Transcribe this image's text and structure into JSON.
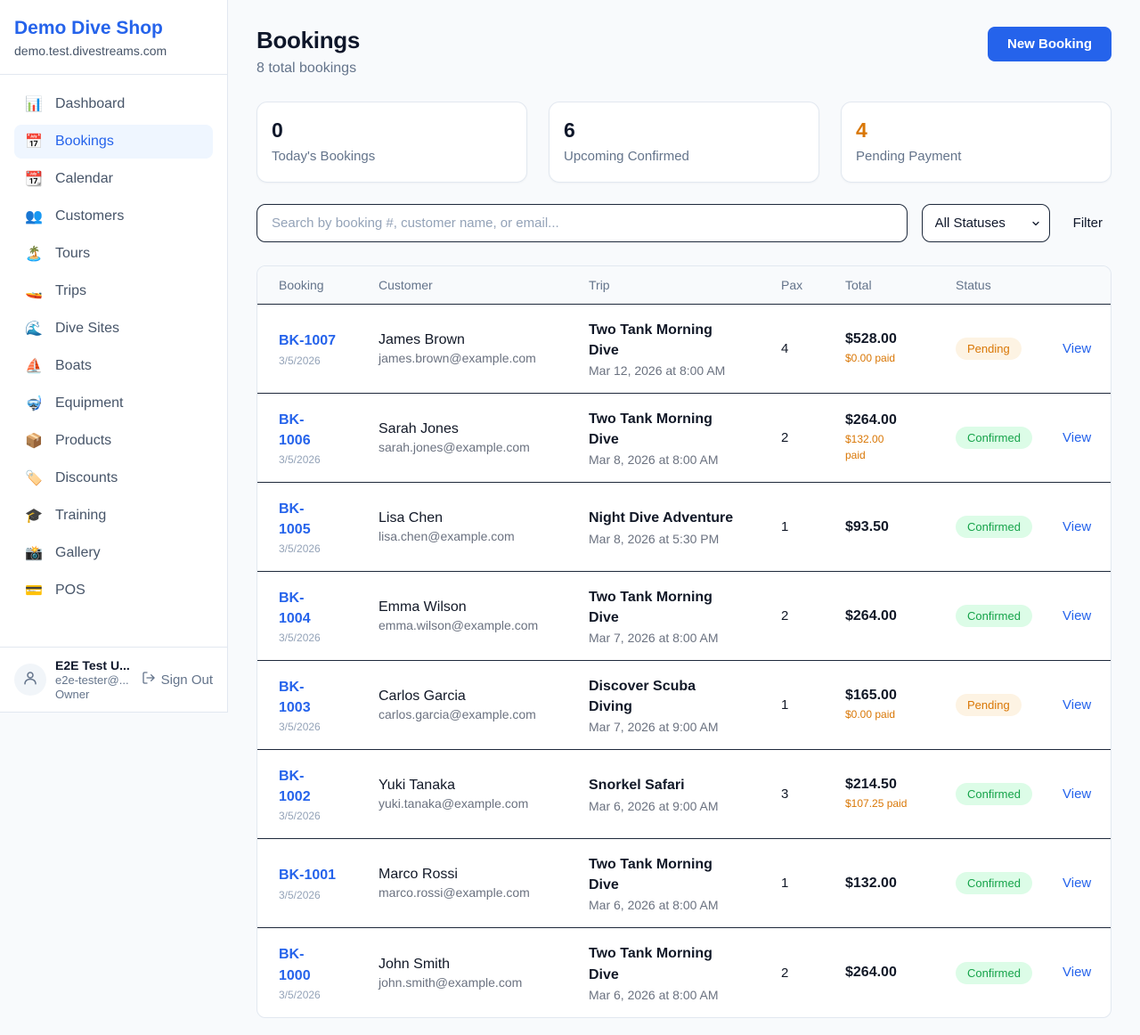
{
  "colors": {
    "accent": "#2563eb",
    "paid": "#d97706",
    "pending_value": "#d97706"
  },
  "sidebar": {
    "shop_name": "Demo Dive Shop",
    "shop_domain": "demo.test.divestreams.com",
    "items": [
      {
        "label": "Dashboard",
        "icon": "📊",
        "icon_name": "dashboard-icon",
        "active": false
      },
      {
        "label": "Bookings",
        "icon": "📅",
        "icon_name": "bookings-icon",
        "active": true
      },
      {
        "label": "Calendar",
        "icon": "📆",
        "icon_name": "calendar-icon",
        "active": false
      },
      {
        "label": "Customers",
        "icon": "👥",
        "icon_name": "customers-icon",
        "active": false
      },
      {
        "label": "Tours",
        "icon": "🏝️",
        "icon_name": "tours-icon",
        "active": false
      },
      {
        "label": "Trips",
        "icon": "🚤",
        "icon_name": "trips-icon",
        "active": false
      },
      {
        "label": "Dive Sites",
        "icon": "🌊",
        "icon_name": "dive-sites-icon",
        "active": false
      },
      {
        "label": "Boats",
        "icon": "⛵",
        "icon_name": "boats-icon",
        "active": false
      },
      {
        "label": "Equipment",
        "icon": "🤿",
        "icon_name": "equipment-icon",
        "active": false
      },
      {
        "label": "Products",
        "icon": "📦",
        "icon_name": "products-icon",
        "active": false
      },
      {
        "label": "Discounts",
        "icon": "🏷️",
        "icon_name": "discounts-icon",
        "active": false
      },
      {
        "label": "Training",
        "icon": "🎓",
        "icon_name": "training-icon",
        "active": false
      },
      {
        "label": "Gallery",
        "icon": "📸",
        "icon_name": "gallery-icon",
        "active": false
      },
      {
        "label": "POS",
        "icon": "💳",
        "icon_name": "pos-icon",
        "active": false
      }
    ],
    "user": {
      "name": "E2E Test U...",
      "email": "e2e-tester@...",
      "role": "Owner",
      "sign_out_label": "Sign Out"
    }
  },
  "header": {
    "title": "Bookings",
    "subtitle": "8 total bookings",
    "new_booking_label": "New Booking"
  },
  "stats": {
    "cards": [
      {
        "value": "0",
        "label": "Today's Bookings",
        "value_color": "#0f172a"
      },
      {
        "value": "6",
        "label": "Upcoming Confirmed",
        "value_color": "#0f172a"
      },
      {
        "value": "4",
        "label": "Pending Payment",
        "value_color": "#d97706"
      }
    ]
  },
  "filters": {
    "search_placeholder": "Search by booking #, customer name, or email...",
    "status_select_value": "All Statuses",
    "filter_label": "Filter"
  },
  "table": {
    "columns": [
      "Booking",
      "Customer",
      "Trip",
      "Pax",
      "Total",
      "Status"
    ],
    "view_label": "View",
    "status_styles": {
      "Pending": {
        "bg": "#fdf3e3",
        "text": "#d97706"
      },
      "Confirmed": {
        "bg": "#dcfce7",
        "text": "#16a34a"
      }
    },
    "rows": [
      {
        "id_lines": [
          "BK-1007"
        ],
        "date": "3/5/2026",
        "customer": "James Brown",
        "email": "james.brown@example.com",
        "trip_lines": [
          "Two Tank Morning",
          "Dive"
        ],
        "when": "Mar 12, 2026 at 8:00 AM",
        "pax": "4",
        "total": "$528.00",
        "paid_lines": [
          "$0.00 paid"
        ],
        "status": "Pending"
      },
      {
        "id_lines": [
          "BK-",
          "1006"
        ],
        "date": "3/5/2026",
        "customer": "Sarah Jones",
        "email": "sarah.jones@example.com",
        "trip_lines": [
          "Two Tank Morning",
          "Dive"
        ],
        "when": "Mar 8, 2026 at 8:00 AM",
        "pax": "2",
        "total": "$264.00",
        "paid_lines": [
          "$132.00",
          "paid"
        ],
        "status": "Confirmed"
      },
      {
        "id_lines": [
          "BK-",
          "1005"
        ],
        "date": "3/5/2026",
        "customer": "Lisa Chen",
        "email": "lisa.chen@example.com",
        "trip_lines": [
          "Night Dive Adventure"
        ],
        "when": "Mar 8, 2026 at 5:30 PM",
        "pax": "1",
        "total": "$93.50",
        "paid_lines": [],
        "status": "Confirmed"
      },
      {
        "id_lines": [
          "BK-",
          "1004"
        ],
        "date": "3/5/2026",
        "customer": "Emma Wilson",
        "email": "emma.wilson@example.com",
        "trip_lines": [
          "Two Tank Morning",
          "Dive"
        ],
        "when": "Mar 7, 2026 at 8:00 AM",
        "pax": "2",
        "total": "$264.00",
        "paid_lines": [],
        "status": "Confirmed"
      },
      {
        "id_lines": [
          "BK-",
          "1003"
        ],
        "date": "3/5/2026",
        "customer": "Carlos Garcia",
        "email": "carlos.garcia@example.com",
        "trip_lines": [
          "Discover Scuba",
          "Diving"
        ],
        "when": "Mar 7, 2026 at 9:00 AM",
        "pax": "1",
        "total": "$165.00",
        "paid_lines": [
          "$0.00 paid"
        ],
        "status": "Pending"
      },
      {
        "id_lines": [
          "BK-",
          "1002"
        ],
        "date": "3/5/2026",
        "customer": "Yuki Tanaka",
        "email": "yuki.tanaka@example.com",
        "trip_lines": [
          "Snorkel Safari"
        ],
        "when": "Mar 6, 2026 at 9:00 AM",
        "pax": "3",
        "total": "$214.50",
        "paid_lines": [
          "$107.25 paid"
        ],
        "status": "Confirmed"
      },
      {
        "id_lines": [
          "BK-1001"
        ],
        "date": "3/5/2026",
        "customer": "Marco Rossi",
        "email": "marco.rossi@example.com",
        "trip_lines": [
          "Two Tank Morning",
          "Dive"
        ],
        "when": "Mar 6, 2026 at 8:00 AM",
        "pax": "1",
        "total": "$132.00",
        "paid_lines": [],
        "status": "Confirmed"
      },
      {
        "id_lines": [
          "BK-",
          "1000"
        ],
        "date": "3/5/2026",
        "customer": "John Smith",
        "email": "john.smith@example.com",
        "trip_lines": [
          "Two Tank Morning",
          "Dive"
        ],
        "when": "Mar 6, 2026 at 8:00 AM",
        "pax": "2",
        "total": "$264.00",
        "paid_lines": [],
        "status": "Confirmed"
      }
    ]
  }
}
